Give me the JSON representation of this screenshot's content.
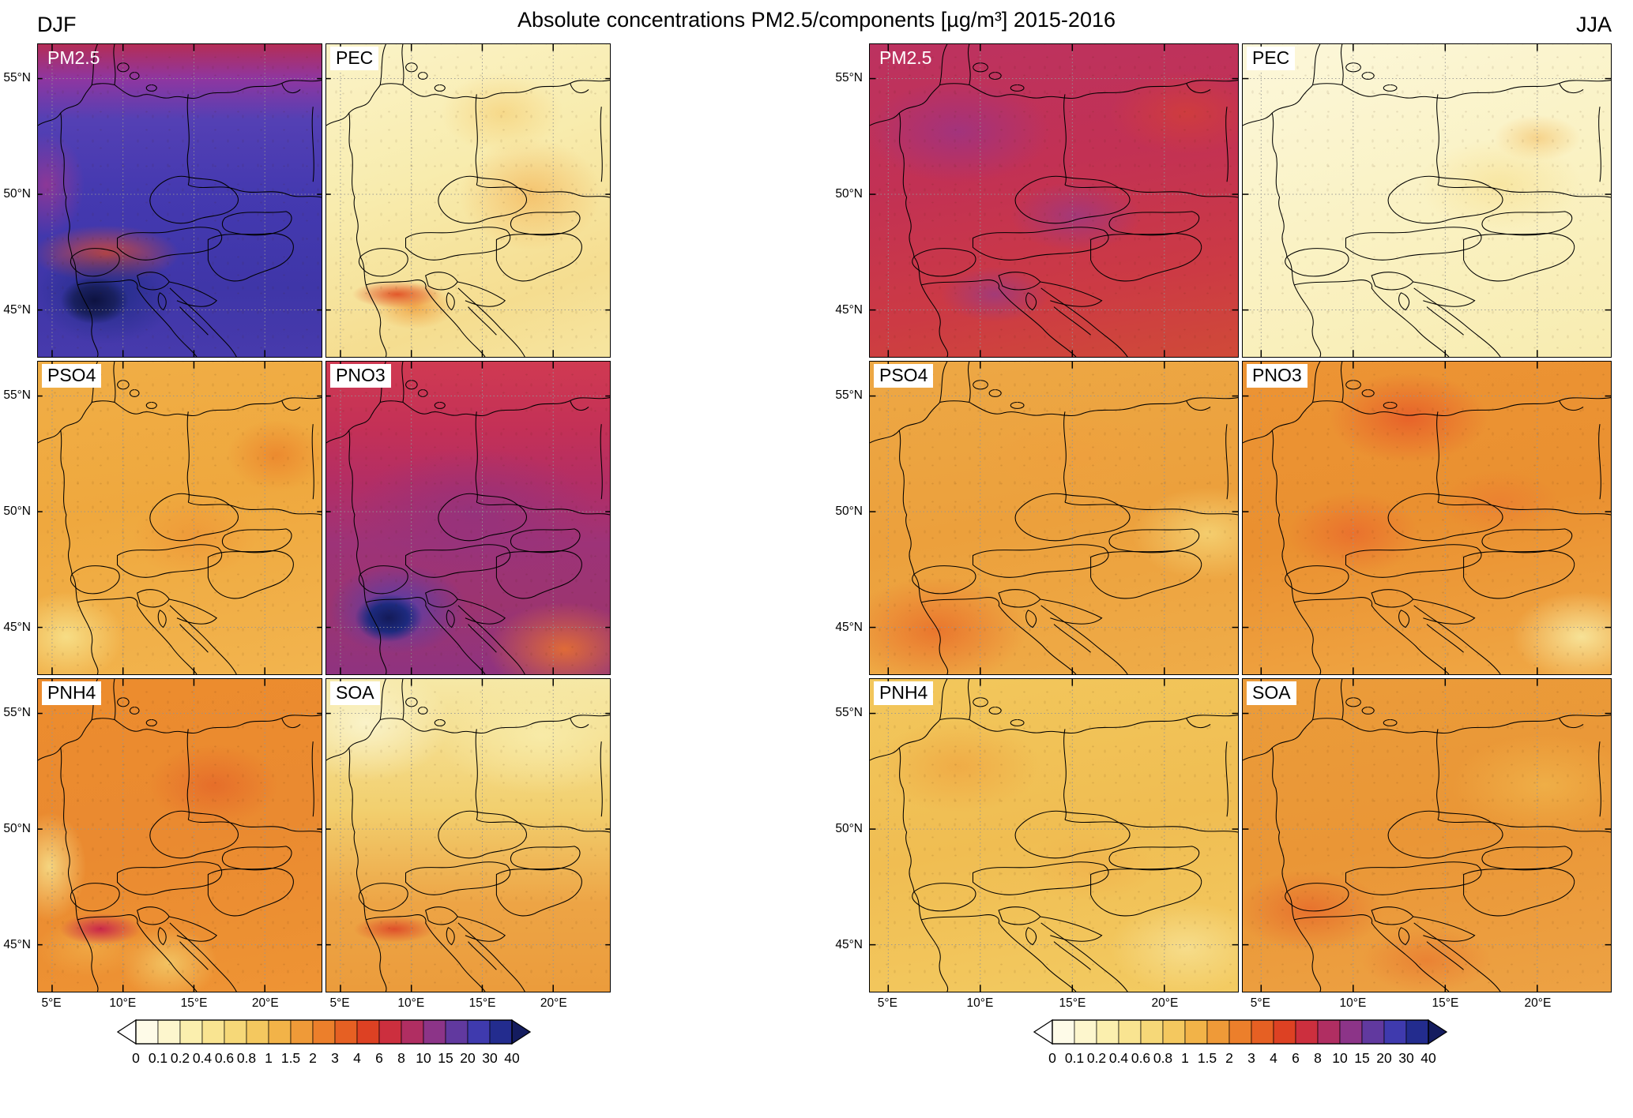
{
  "figure": {
    "title": "Absolute concentrations PM2.5/components [µg/m³] 2015-2016",
    "season_left": "DJF",
    "season_right": "JJA",
    "units": "µg/m³",
    "period": "2015-2016"
  },
  "axes": {
    "lat_ticks": [
      "55°N",
      "50°N",
      "45°N"
    ],
    "lat_frac": [
      0.11,
      0.48,
      0.85
    ],
    "lon_ticks": [
      "5°E",
      "10°E",
      "15°E",
      "20°E"
    ],
    "lon_frac": [
      0.05,
      0.3,
      0.55,
      0.8
    ]
  },
  "colorbar": {
    "tick_labels": [
      "0",
      "0.1",
      "0.2",
      "0.4",
      "0.6",
      "0.8",
      "1",
      "1.5",
      "2",
      "3",
      "4",
      "6",
      "8",
      "10",
      "15",
      "20",
      "30",
      "40"
    ],
    "segment_colors": [
      "#fefbe8",
      "#fdf6cd",
      "#fbefae",
      "#f9e491",
      "#f6d878",
      "#f4c85f",
      "#f2b348",
      "#ef9a38",
      "#ec7f2b",
      "#e66023",
      "#dd4123",
      "#cc2f3e",
      "#b02e62",
      "#8c3488",
      "#61399f",
      "#3f3aae",
      "#232c8e"
    ],
    "under_color": "#ffffff",
    "over_color": "#141c5f"
  },
  "groups": [
    {
      "id": "djf",
      "season": "DJF",
      "panels": [
        {
          "label": "PM2.5",
          "field": "djf-pm25",
          "label_theme": "light"
        },
        {
          "label": "PEC",
          "field": "djf-pec",
          "label_theme": "dark"
        },
        {
          "label": "PSO4",
          "field": "djf-pso4",
          "label_theme": "dark"
        },
        {
          "label": "PNO3",
          "field": "djf-pno3",
          "label_theme": "dark"
        },
        {
          "label": "PNH4",
          "field": "djf-pnh4",
          "label_theme": "dark"
        },
        {
          "label": "SOA",
          "field": "djf-soa",
          "label_theme": "dark"
        }
      ]
    },
    {
      "id": "jja",
      "season": "JJA",
      "panels": [
        {
          "label": "PM2.5",
          "field": "jja-pm25",
          "label_theme": "light"
        },
        {
          "label": "PEC",
          "field": "jja-pec",
          "label_theme": "dark"
        },
        {
          "label": "PSO4",
          "field": "jja-pso4",
          "label_theme": "dark"
        },
        {
          "label": "PNO3",
          "field": "jja-pno3",
          "label_theme": "dark"
        },
        {
          "label": "PNH4",
          "field": "jja-pnh4",
          "label_theme": "dark"
        },
        {
          "label": "SOA",
          "field": "jja-soa",
          "label_theme": "dark"
        }
      ]
    }
  ],
  "chart_data": {
    "type": "heatmap",
    "title": "Absolute concentrations PM2.5/components [µg/m³] 2015-2016",
    "layout": "Two seasonal groups of map panels (DJF left, JJA right), each a 3x2 grid over Central Europe; shared discrete colorbar below each group",
    "map_region": "Central Europe, approx 4-24°E and 43-56.5°N",
    "lon_tick_values": [
      5,
      10,
      15,
      20
    ],
    "lat_tick_values": [
      55,
      50,
      45
    ],
    "color_scale_levels": [
      0,
      0.1,
      0.2,
      0.4,
      0.6,
      0.8,
      1,
      1.5,
      2,
      3,
      4,
      6,
      8,
      10,
      15,
      20,
      30,
      40
    ],
    "units": "µg/m³",
    "legend_position": "bottom",
    "grid": "dotted graticule every 5 degrees; country borders drawn in black",
    "panels": [
      {
        "season": "DJF",
        "component": "PM2.5",
        "approx_values_ug_m3": "10-20 over most of domain (blue/violet), 4-8 along northern edge, 30->40 in Po Valley/Alpine valleys"
      },
      {
        "season": "DJF",
        "component": "PEC",
        "approx_values_ug_m3": "0.2-0.8 generally, 1-3 streak in Po Valley, scattered 1-2 hotspots in east"
      },
      {
        "season": "DJF",
        "component": "PSO4",
        "approx_values_ug_m3": "1-2 broadly, 0.6-1 in southwest, up to 2-3 patches in east"
      },
      {
        "season": "DJF",
        "component": "PNO3",
        "approx_values_ug_m3": "3-6 north, 6-10 central (purple), 20->40 Po Valley/southern Alps, 1.5-3 southeast corner"
      },
      {
        "season": "DJF",
        "component": "PNH4",
        "approx_values_ug_m3": "1.5-3 broadly, 3-6 patches, 6-10 crimson band along Po Valley/Alpine rim"
      },
      {
        "season": "DJF",
        "component": "SOA",
        "approx_values_ug_m3": "0.2-0.6 north, 0.8-1.5 center/south, 2-4 Po Valley streak"
      },
      {
        "season": "JJA",
        "component": "PM2.5",
        "approx_values_ug_m3": "4-6 broadly (red), 6-10 magenta/purple patches in northwest and center"
      },
      {
        "season": "JJA",
        "component": "PEC",
        "approx_values_ug_m3": "0.1-0.4 nearly everywhere, faint 0.4-0.8 patches east"
      },
      {
        "season": "JJA",
        "component": "PSO4",
        "approx_values_ug_m3": "1-2 broadly, 2-3 in south/southwest, 0.8-1 along eastern edge"
      },
      {
        "season": "JJA",
        "component": "PNO3",
        "approx_values_ug_m3": "1-2 broadly, 2-4 red-orange patches north and center, 0.2-0.6 southeast corner"
      },
      {
        "season": "JJA",
        "component": "PNH4",
        "approx_values_ug_m3": "0.8-1.5 broadly, 1.5-2 patches, paler 0.6-0.8 southeast"
      },
      {
        "season": "JJA",
        "component": "SOA",
        "approx_values_ug_m3": "1-2 broadly, 2-4 in southwest/Alps, 1-1.5 east"
      }
    ]
  }
}
